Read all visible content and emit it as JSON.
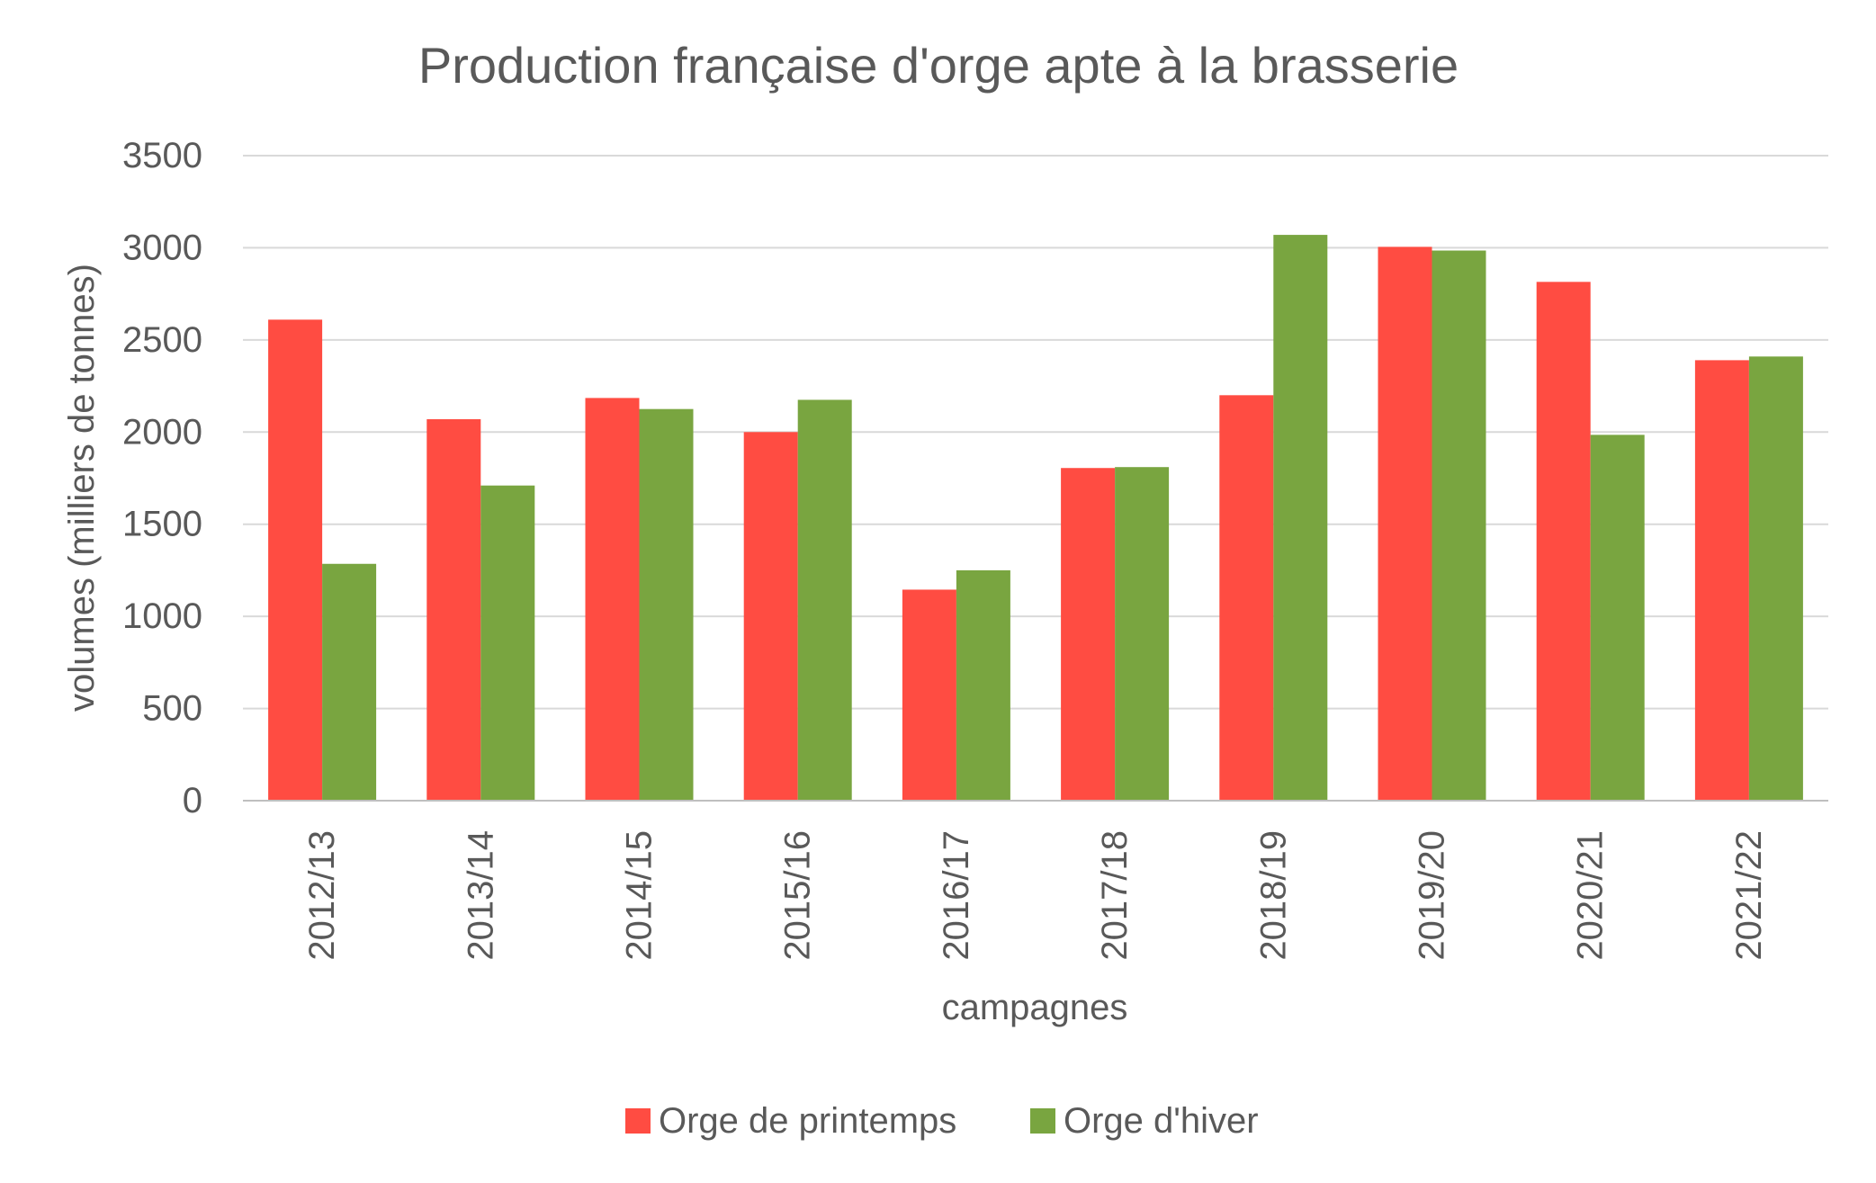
{
  "chart_data": {
    "type": "bar",
    "title": "Production française d'orge apte à la brasserie",
    "xlabel": "campagnes",
    "ylabel": "volumes (milliers de tonnes)",
    "ylim": [
      0,
      3500
    ],
    "yticks": [
      "0",
      "500",
      "1000",
      "1500",
      "2000",
      "2500",
      "3000",
      "3500"
    ],
    "grid": true,
    "legend_position": "bottom",
    "categories": [
      "2012/13",
      "2013/14",
      "2014/15",
      "2015/16",
      "2016/17",
      "2017/18",
      "2018/19",
      "2019/20",
      "2020/21",
      "2021/22"
    ],
    "series": [
      {
        "name": "Orge de printemps",
        "color": "#FF4C42",
        "values": [
          2610,
          2070,
          2185,
          2000,
          1145,
          1805,
          2200,
          3005,
          2815,
          2390
        ]
      },
      {
        "name": "Orge d'hiver",
        "color": "#79A540",
        "values": [
          1285,
          1710,
          2125,
          2175,
          1250,
          1810,
          3070,
          2985,
          1985,
          2410
        ]
      }
    ]
  }
}
